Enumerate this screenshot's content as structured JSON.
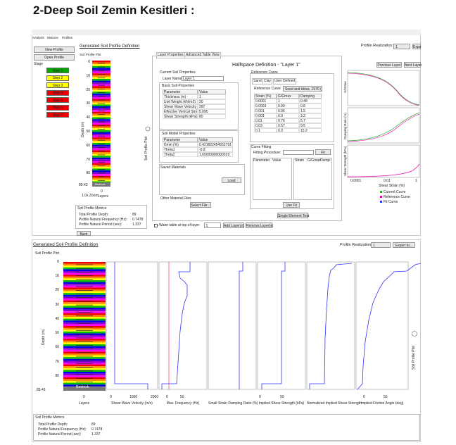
{
  "title": "2-Deep Soil Zemin Kesitleri  :",
  "top": {
    "tabs": [
      "Analysis",
      "Motions",
      "Profiles"
    ],
    "header": "Generated Soil Profile Definition",
    "realization_label": "Profile Realization:",
    "realization_value": "1",
    "export": "Expo",
    "buttons": [
      "New Profile",
      "Open Profile"
    ],
    "stage_label": "Stage",
    "steps": [
      "Step 1",
      "Step 2",
      "Step 3",
      "Step 4",
      "Step 5",
      "Step 6",
      "Step 7"
    ],
    "plot_title": "Soil Profile Plot",
    "depth_label": "Depth (m)",
    "depth_ticks": [
      0,
      10,
      20,
      30,
      40,
      50,
      60,
      70,
      80
    ],
    "bottom_depth": 89.43,
    "bedrock": "Bedrock",
    "layers_zero": 0,
    "layers_label": "Layers",
    "zoom": "1.0x Zoom",
    "side_label": "Soil Profile Plot",
    "layer_tabs": [
      "Layer Properties",
      "Advanced Table View"
    ],
    "halfspace_title": "Halfspace Definition - \"Layer 1\"",
    "nav": [
      "Previous Layer",
      "Next Layer"
    ],
    "current_props": "Current Soil Properties",
    "layer_name_label": "Layer Name",
    "layer_name": "Layer 1",
    "basic_title": "Basic Soil Properties",
    "basic_table": {
      "headers": [
        "Parameter",
        "Value"
      ],
      "rows": [
        [
          "Thickness (m)",
          "1"
        ],
        [
          "Unit Weight (kN/m3)",
          "20"
        ],
        [
          "Shear Wave Velocity",
          "297"
        ],
        [
          "Effective Vertical Stre",
          "5.095"
        ],
        [
          "Shear Strength (kPa)",
          "80"
        ]
      ]
    },
    "model_title": "Soil Model Properties",
    "model_table": {
      "headers": [
        "Parameter",
        "Value"
      ],
      "rows": [
        [
          "Dmin (%)",
          "0.421822454552791"
        ],
        [
          "Theta1",
          "-0.8"
        ],
        [
          "Theta2",
          "1.65000000000019"
        ]
      ]
    },
    "saved": "Saved Materials",
    "load": "Load",
    "other": "Other Material Files",
    "select_file": "Select File...",
    "ref_title": "Reference Curve",
    "ref_tabs": [
      "Sand",
      "Clay",
      "User Defined"
    ],
    "ref_label": "Reference Curve",
    "ref_value": "Seed and Idriss, 1970 (",
    "ref_table": {
      "headers": [
        "Strain (%)",
        "G/Gmax",
        "Damping"
      ],
      "rows": [
        [
          "0.0001",
          "1",
          "0.48"
        ],
        [
          "0.0003",
          "0.99",
          "0.8"
        ],
        [
          "0.001",
          "0.96",
          "1.5"
        ],
        [
          "0.003",
          "0.9",
          "3.2"
        ],
        [
          "0.01",
          "0.76",
          "5.7"
        ],
        [
          "0.03",
          "0.57",
          "9.5"
        ],
        [
          "0.1",
          "0.3",
          "15.2"
        ]
      ]
    },
    "fit_title": "Curve Fitting",
    "fit_label": "Fitting Procedure:",
    "fit_button": "Fit",
    "fit_headers": [
      "Parameter",
      "Value"
    ],
    "fit_headers2": [
      "Strain",
      "G/Gmax",
      "Dampi"
    ],
    "use_fit": "Use Fit",
    "single": "Single Element Test",
    "chart_ylabels": [
      "G/Gmax",
      "Damping Ratio (%)",
      "Shear Strength (kPa)"
    ],
    "chart_xticks": [
      "0.0001",
      "0.01",
      "1"
    ],
    "chart_xlabel": "Shear Strain (%)",
    "legend": [
      "Current Curve",
      "Reference Curve",
      "Fit Curve"
    ],
    "metrics_title": "Soil Profile Metrics",
    "metrics": [
      [
        "Total Profile Depth:",
        "89"
      ],
      [
        "Profile Natural Frequency (Hz):",
        "0.7478"
      ],
      [
        "Profile Natural Period (sec):",
        "1.337"
      ]
    ],
    "water": "Water table at top of layer:",
    "water_value": "1",
    "add": "Add Layer(s)",
    "remove": "Remove Layer(s)",
    "back": "Back"
  },
  "bottom": {
    "header": "Generated Soil Profile Definition",
    "realization_label": "Profile Realization:",
    "realization_value": "1",
    "export": "Export to...",
    "plot_title": "Soil Profile Plot",
    "depth_label": "Depth (m)",
    "depth_ticks": [
      0,
      10,
      20,
      30,
      40,
      50,
      60,
      70,
      80
    ],
    "bottom_depth": 89.43,
    "bedrock": "Bedrock",
    "layers_zero": 0,
    "layers_label": "Layers",
    "panels": [
      {
        "label": "Shear Wave Velocity (m/s)",
        "ticks": [
          0,
          1000,
          2000
        ]
      },
      {
        "label": "Max. Frequency (Hz)",
        "ticks": [
          0,
          50
        ]
      },
      {
        "label": "Small Strain Damping Ratio (%)",
        "ticks": []
      },
      {
        "label": "Implied Shear Strength (kPa)",
        "ticks": [
          0,
          50
        ]
      },
      {
        "label": "Normalized Implied Shear Strength",
        "ticks": []
      },
      {
        "label": "Implied Friction Angle (deg)",
        "ticks": [
          0,
          50
        ]
      }
    ],
    "side_label": "Soil Profile Plot",
    "metrics_title": "Soil Profile Metrics",
    "metrics": [
      [
        "Total Profile Depth:",
        "89"
      ],
      [
        "Profile Natural Frequency (Hz):",
        "0.7478"
      ],
      [
        "Profile Natural Period (sec):",
        "1.337"
      ]
    ]
  }
}
